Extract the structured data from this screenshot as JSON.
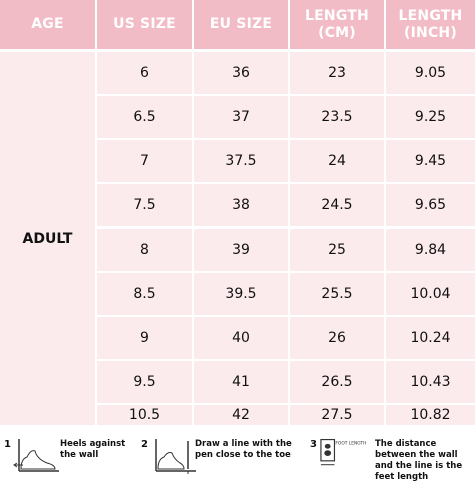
{
  "table": {
    "headers": [
      "AGE",
      "US SIZE",
      "EU SIZE",
      "LENGTH (CM)",
      "LENGTH (INCH)"
    ],
    "age_label": "ADULT",
    "rows": [
      {
        "us": "6",
        "eu": "36",
        "cm": "23",
        "inch": "9.05"
      },
      {
        "us": "6.5",
        "eu": "37",
        "cm": "23.5",
        "inch": "9.25"
      },
      {
        "us": "7",
        "eu": "37.5",
        "cm": "24",
        "inch": "9.45"
      },
      {
        "us": "7.5",
        "eu": "38",
        "cm": "24.5",
        "inch": "9.65"
      },
      {
        "us": "8",
        "eu": "39",
        "cm": "25",
        "inch": "9.84"
      },
      {
        "us": "8.5",
        "eu": "39.5",
        "cm": "25.5",
        "inch": "10.04"
      },
      {
        "us": "9",
        "eu": "40",
        "cm": "26",
        "inch": "10.24"
      },
      {
        "us": "9.5",
        "eu": "41",
        "cm": "26.5",
        "inch": "10.43"
      },
      {
        "us": "10.5",
        "eu": "42",
        "cm": "27.5",
        "inch": "10.82"
      }
    ]
  },
  "guide": {
    "steps": [
      {
        "number": "1",
        "text": "Heels against the wall",
        "icon": "heel-against-wall-icon"
      },
      {
        "number": "2",
        "text": "Draw a line with the pen close to the toe",
        "icon": "draw-line-icon"
      },
      {
        "number": "3",
        "text": "The distance between the wall and the line is the feet length",
        "icon": "foot-length-icon",
        "icon_label": "FOOT LENGTH"
      }
    ]
  },
  "colors": {
    "header_bg": "#f2bcc6",
    "header_text": "#ffffff",
    "cell_bg": "#fcebed",
    "grid_line": "#ffffff"
  }
}
